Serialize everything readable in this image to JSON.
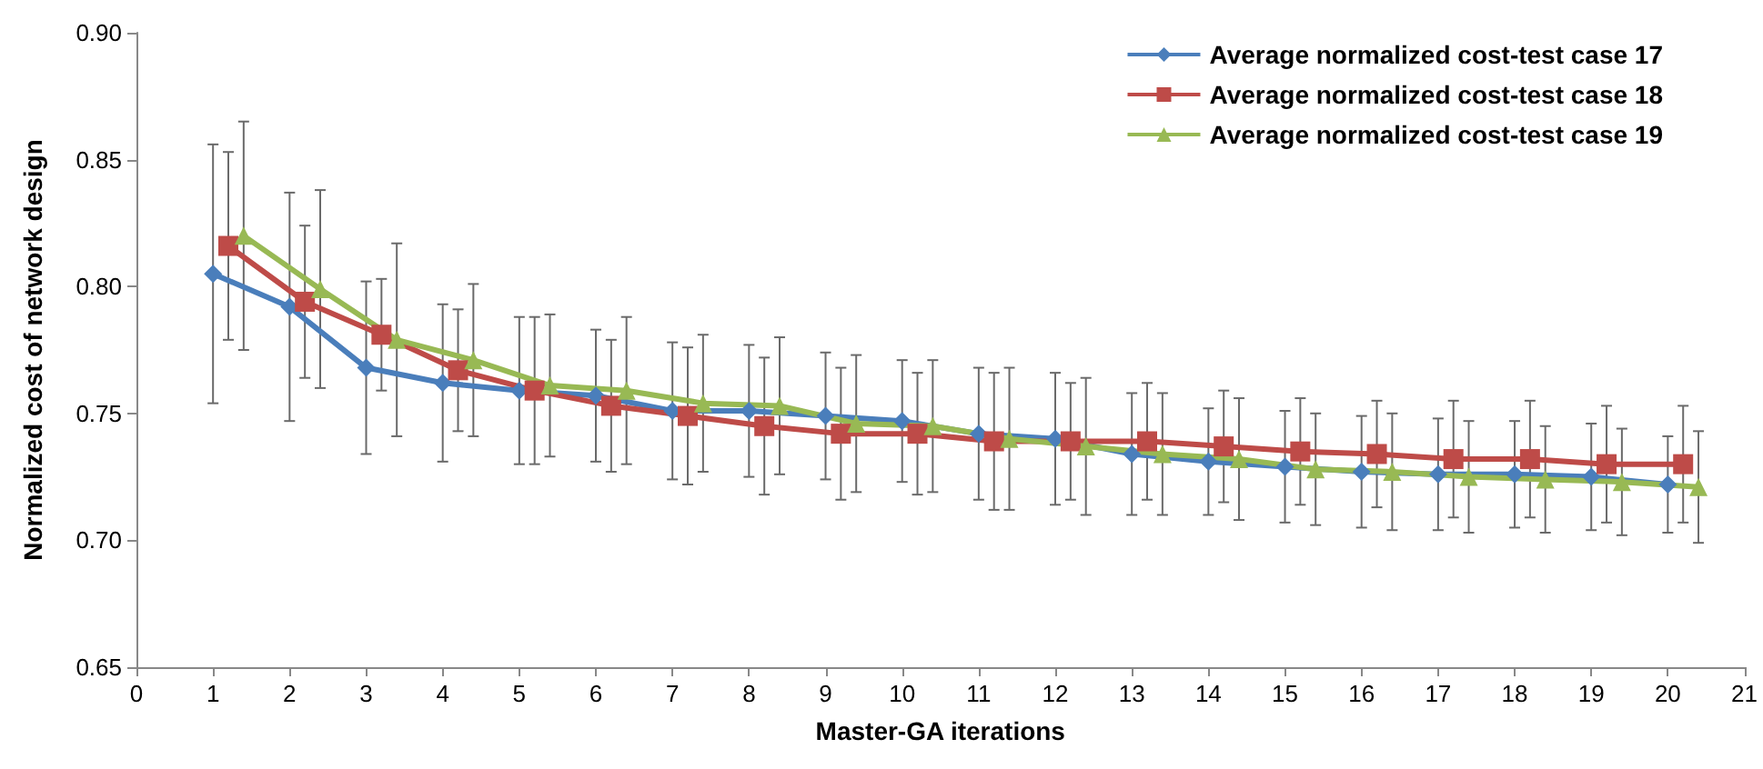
{
  "chart_data": {
    "type": "line",
    "xlabel": "Master-GA iterations",
    "ylabel": "Normalized cost of network design",
    "xlim": [
      0,
      21
    ],
    "xticks": [
      0,
      1,
      2,
      3,
      4,
      5,
      6,
      7,
      8,
      9,
      10,
      11,
      12,
      13,
      14,
      15,
      16,
      17,
      18,
      19,
      20,
      21
    ],
    "ylim": [
      0.65,
      0.9
    ],
    "yticks": [
      {
        "value": 0.65,
        "label": "0.65"
      },
      {
        "value": 0.7,
        "label": "0.70"
      },
      {
        "value": 0.75,
        "label": "0.75"
      },
      {
        "value": 0.8,
        "label": "0.80"
      },
      {
        "value": 0.85,
        "label": "0.85"
      },
      {
        "value": 0.9,
        "label": "0.90"
      }
    ],
    "grid": false,
    "legend": "top right",
    "series": [
      {
        "name": "Average normalized cost-test case 17",
        "color": "#4a7ebb",
        "marker": "diamond",
        "x": [
          1,
          2,
          3,
          4,
          5,
          6,
          7,
          8,
          9,
          10,
          11,
          12,
          13,
          14,
          15,
          16,
          17,
          18,
          19,
          20
        ],
        "values": [
          0.805,
          0.792,
          0.768,
          0.762,
          0.759,
          0.757,
          0.751,
          0.751,
          0.749,
          0.747,
          0.742,
          0.74,
          0.734,
          0.731,
          0.729,
          0.727,
          0.726,
          0.726,
          0.725,
          0.722
        ],
        "errors": [
          0.051,
          0.045,
          0.034,
          0.031,
          0.029,
          0.026,
          0.027,
          0.026,
          0.025,
          0.024,
          0.026,
          0.026,
          0.024,
          0.021,
          0.022,
          0.022,
          0.022,
          0.021,
          0.021,
          0.019
        ]
      },
      {
        "name": "Average normalized cost-test case 18",
        "color": "#be4b48",
        "marker": "square",
        "x": [
          1.2,
          2.2,
          3.2,
          4.2,
          5.2,
          6.2,
          7.2,
          8.2,
          9.2,
          10.2,
          11.2,
          12.2,
          13.2,
          14.2,
          15.2,
          16.2,
          17.2,
          18.2,
          19.2,
          20.2
        ],
        "values": [
          0.816,
          0.794,
          0.781,
          0.767,
          0.759,
          0.753,
          0.749,
          0.745,
          0.742,
          0.742,
          0.739,
          0.739,
          0.739,
          0.737,
          0.735,
          0.734,
          0.732,
          0.732,
          0.73,
          0.73
        ],
        "errors": [
          0.037,
          0.03,
          0.022,
          0.024,
          0.029,
          0.026,
          0.027,
          0.027,
          0.026,
          0.024,
          0.027,
          0.023,
          0.023,
          0.022,
          0.021,
          0.021,
          0.023,
          0.023,
          0.023,
          0.023
        ]
      },
      {
        "name": "Average normalized cost-test case 19",
        "color": "#98b954",
        "marker": "triangle",
        "x": [
          1.4,
          2.4,
          3.4,
          4.4,
          5.4,
          6.4,
          7.4,
          8.4,
          9.4,
          10.4,
          11.4,
          12.4,
          13.4,
          14.4,
          15.4,
          16.4,
          17.4,
          18.4,
          19.4,
          20.4
        ],
        "values": [
          0.82,
          0.799,
          0.779,
          0.771,
          0.761,
          0.759,
          0.754,
          0.753,
          0.746,
          0.745,
          0.74,
          0.737,
          0.734,
          0.732,
          0.728,
          0.727,
          0.725,
          0.724,
          0.723,
          0.721
        ],
        "errors": [
          0.045,
          0.039,
          0.038,
          0.03,
          0.028,
          0.029,
          0.027,
          0.027,
          0.027,
          0.026,
          0.028,
          0.027,
          0.024,
          0.024,
          0.022,
          0.023,
          0.022,
          0.021,
          0.021,
          0.022
        ]
      }
    ]
  }
}
